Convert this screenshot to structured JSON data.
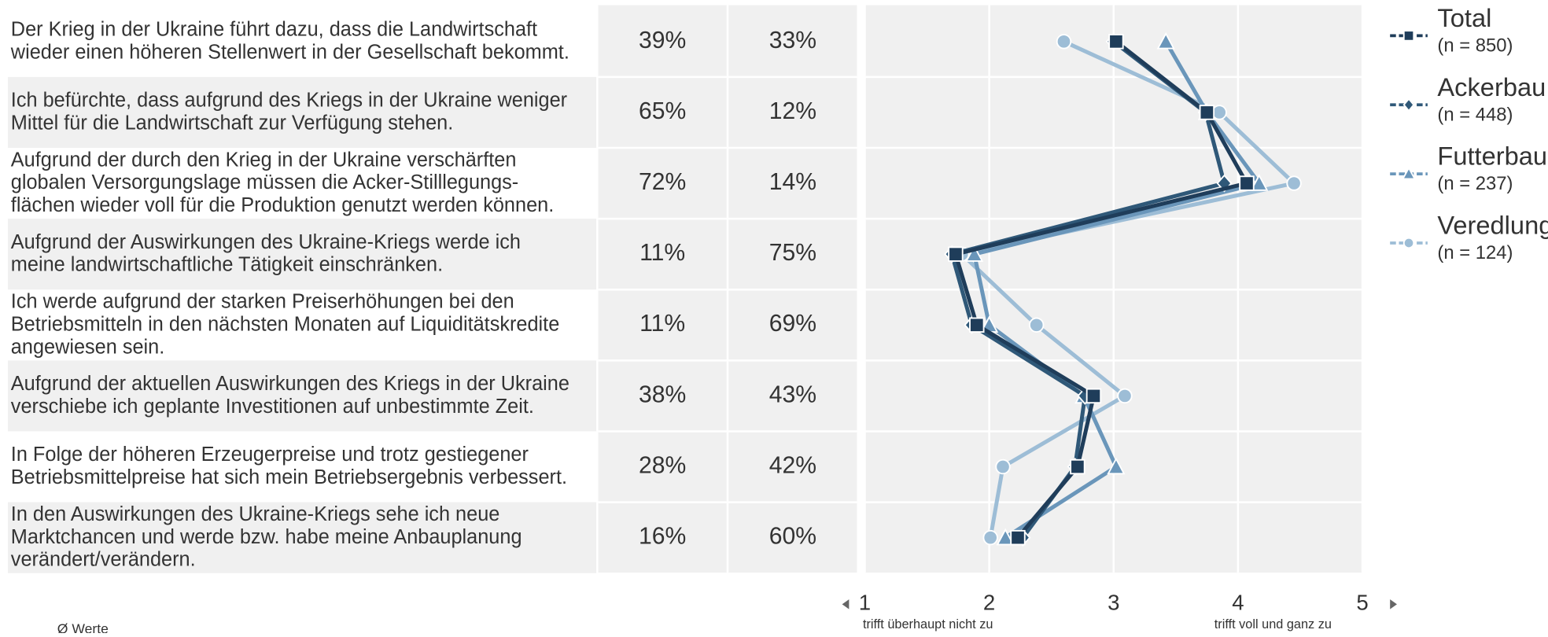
{
  "chart_data": {
    "type": "line",
    "categories": [
      "Der Krieg in der Ukraine führt dazu, dass die Landwirtschaft\nwieder einen höheren Stellenwert in der Gesellschaft bekommt.",
      "Ich befürchte, dass aufgrund des Kriegs in der Ukraine weniger\nMittel für die Landwirtschaft zur Verfügung stehen.",
      "Aufgrund der durch den Krieg in der Ukraine verschärften\nglobalen Versorgungslage müssen die Acker-Stilllegungs-\nflächen wieder voll für die Produktion genutzt werden können.",
      "Aufgrund der Auswirkungen des Ukraine-Kriegs werde ich\nmeine landwirtschaftliche Tätigkeit einschränken.",
      "Ich werde aufgrund der starken Preiserhöhungen bei den\nBetriebsmitteln in den nächsten Monaten auf Liquiditätskredite\nangewiesen sein.",
      "Aufgrund der aktuellen Auswirkungen des Kriegs in der Ukraine\nverschiebe ich geplante Investitionen auf unbestimmte Zeit.",
      "In Folge der höheren Erzeugerpreise und trotz gestiegener\nBetriebsmittelpreise hat sich mein Betriebsergebnis verbessert.",
      "In den Auswirkungen des Ukraine-Kriegs sehe ich neue\nMarktchancen und werde bzw. habe meine Anbauplanung\nverändert/verändern."
    ],
    "columns": [
      {
        "values": [
          39,
          65,
          72,
          11,
          11,
          38,
          28,
          16
        ],
        "value_labels": [
          "39%",
          "65%",
          "72%",
          "11%",
          "11%",
          "38%",
          "28%",
          "16%"
        ]
      },
      {
        "values": [
          33,
          12,
          14,
          75,
          69,
          43,
          42,
          60
        ],
        "value_labels": [
          "33%",
          "12%",
          "14%",
          "75%",
          "69%",
          "43%",
          "42%",
          "60%"
        ]
      }
    ],
    "series": [
      {
        "name": "Total",
        "n_label": "(n = 850)",
        "color": "#1f3d5a",
        "marker": "square",
        "values": [
          3.02,
          3.75,
          4.07,
          1.73,
          1.9,
          2.84,
          2.71,
          2.23
        ]
      },
      {
        "name": "Ackerbau",
        "n_label": "(n = 448)",
        "color": "#2f5878",
        "marker": "diamond",
        "values": [
          3.0,
          3.74,
          3.89,
          1.7,
          1.86,
          2.77,
          2.69,
          2.27
        ]
      },
      {
        "name": "Futterbau",
        "n_label": "(n = 237)",
        "color": "#6a96ba",
        "marker": "triangle",
        "values": [
          3.42,
          3.75,
          4.17,
          1.88,
          2.0,
          2.76,
          3.02,
          2.13
        ]
      },
      {
        "name": "Veredlung",
        "n_label": "(n = 124)",
        "color": "#9dbdd6",
        "marker": "circle",
        "values": [
          2.6,
          3.85,
          4.45,
          1.78,
          2.38,
          3.09,
          2.11,
          2.01
        ]
      }
    ],
    "xlim": [
      1,
      5
    ],
    "xticks": [
      1,
      2,
      3,
      4,
      5
    ],
    "x_label_low": "trifft überhaupt nicht zu",
    "x_label_high": "trifft voll und ganz zu",
    "footnote": "Ø Werte",
    "grid": true
  }
}
